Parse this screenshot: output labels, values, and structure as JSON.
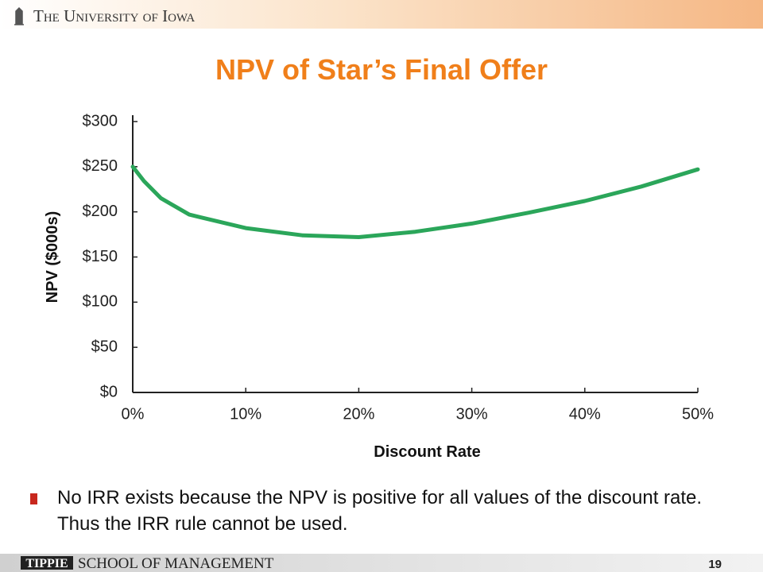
{
  "header": {
    "institution": "The University of Iowa"
  },
  "chart_data": {
    "type": "line",
    "title": "NPV of Star’s Final Offer",
    "x_label": "Discount Rate",
    "y_label": "NPV ($000s)",
    "x": [
      0,
      1,
      2.5,
      5,
      10,
      15,
      20,
      25,
      30,
      35,
      40,
      45,
      50
    ],
    "series": [
      {
        "name": "NPV",
        "color": "#2ba65a",
        "values": [
          250,
          234,
          215,
          197,
          182,
          174,
          172,
          178,
          187,
          199,
          212,
          228,
          247
        ]
      }
    ],
    "xlim": [
      0,
      50
    ],
    "xticks": [
      {
        "value": 0,
        "label": "0%"
      },
      {
        "value": 10,
        "label": "10%"
      },
      {
        "value": 20,
        "label": "20%"
      },
      {
        "value": 30,
        "label": "30%"
      },
      {
        "value": 40,
        "label": "40%"
      },
      {
        "value": 50,
        "label": "50%"
      }
    ],
    "ylim": [
      0,
      300
    ],
    "yticks": [
      {
        "value": 0,
        "label": "$0"
      },
      {
        "value": 50,
        "label": "$50"
      },
      {
        "value": 100,
        "label": "$100"
      },
      {
        "value": 150,
        "label": "$150"
      },
      {
        "value": 200,
        "label": "$200"
      },
      {
        "value": 250,
        "label": "$250"
      },
      {
        "value": 300,
        "label": "$300"
      }
    ],
    "grid": false
  },
  "bullet": "No IRR exists because the NPV is positive for all values of the discount rate. Thus the IRR rule cannot be used.",
  "footer": {
    "brand": "TIPPIE",
    "school": "School of Management",
    "page": "19"
  }
}
